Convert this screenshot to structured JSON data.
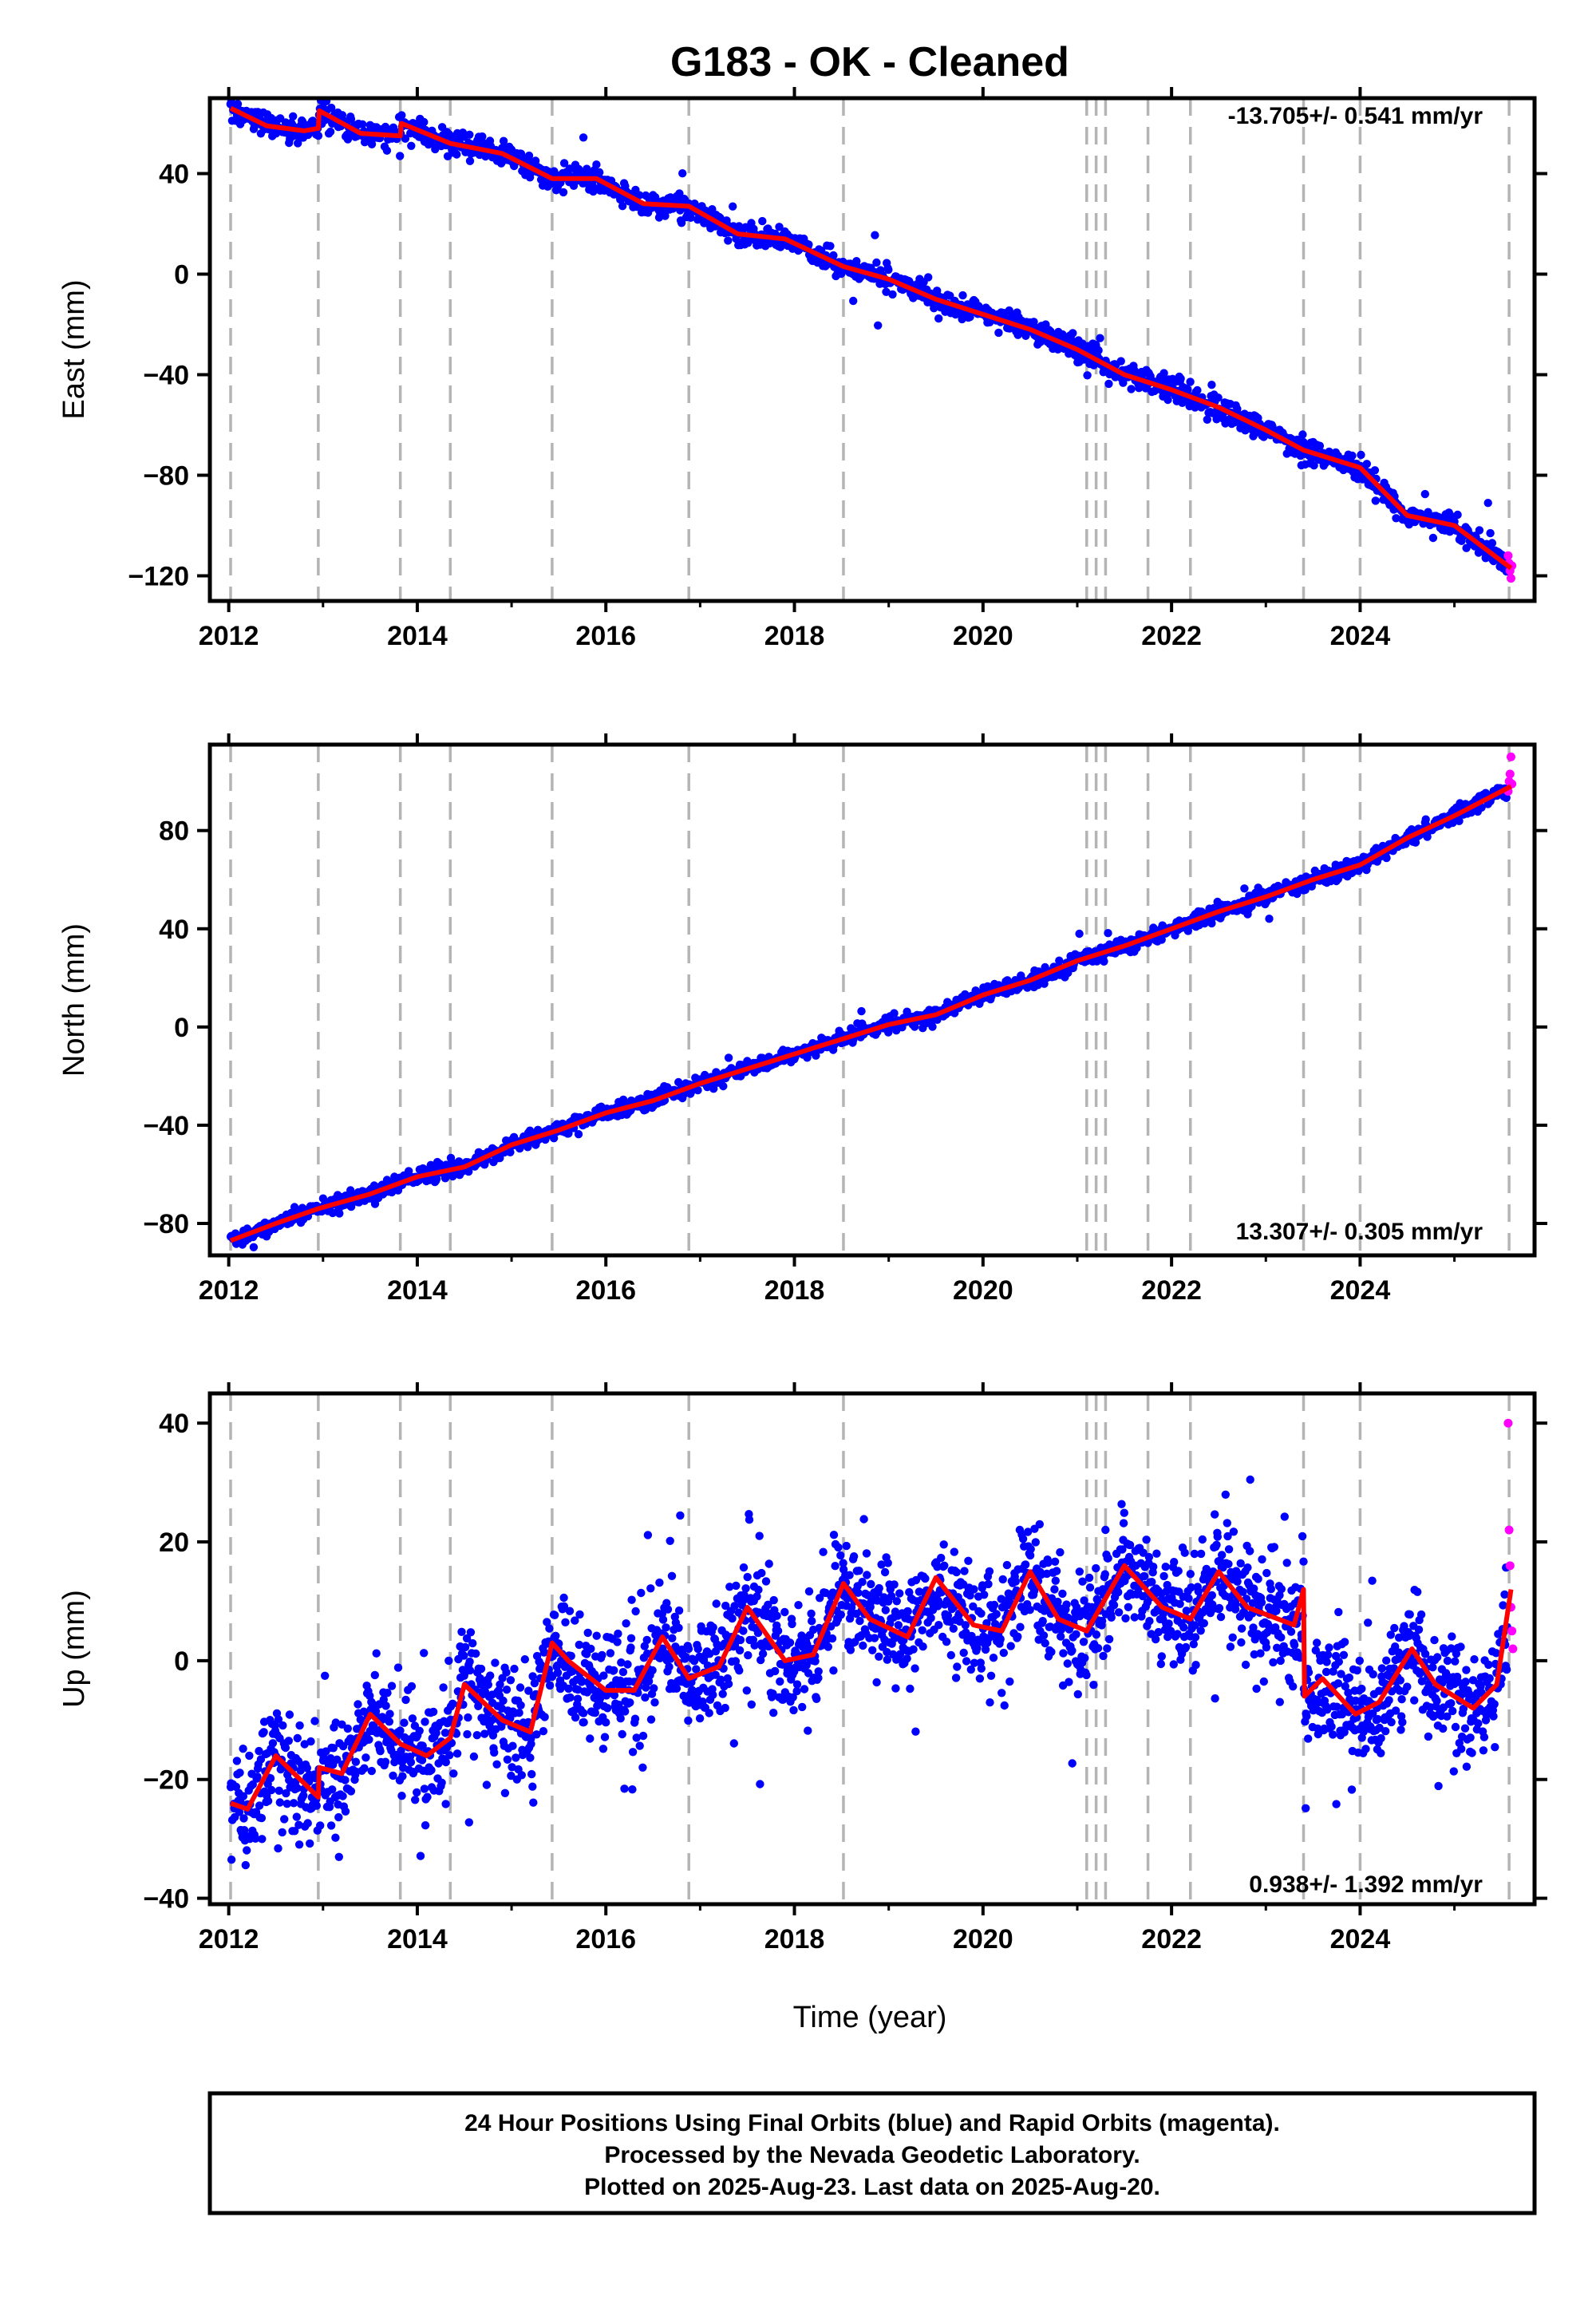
{
  "title": "G183  - OK - Cleaned",
  "xlabel": "Time (year)",
  "caption": {
    "lines": [
      "24 Hour Positions Using Final Orbits (blue) and Rapid Orbits (magenta).",
      "Processed by the Nevada Geodetic Laboratory.",
      "Plotted on 2025-Aug-23. Last data on 2025-Aug-20."
    ]
  },
  "colors": {
    "final_orbits": "#0000ff",
    "rapid_orbits": "#ff00ff",
    "model": "#ff0000",
    "event_lines": "#b4b4b4",
    "frame": "#000000"
  },
  "chart_data": [
    {
      "type": "scatter",
      "component": "east",
      "ylabel": "East (mm)",
      "rate_text": "-13.705+/- 0.541 mm/yr",
      "xlim": [
        2011.8,
        2025.85
      ],
      "ylim": [
        -130,
        70
      ],
      "xticks": [
        2012,
        2014,
        2016,
        2018,
        2020,
        2022,
        2024
      ],
      "xtick_labels": [
        "2012",
        "2014",
        "2016",
        "2018",
        "2020",
        "2022",
        "2024"
      ],
      "yticks": [
        40,
        0,
        -40,
        -80,
        -120
      ],
      "ytick_labels": [
        "40",
        "0",
        "−40",
        "−80",
        "−120"
      ],
      "event_lines": [
        2012.02,
        2012.95,
        2013.82,
        2014.35,
        2015.43,
        2016.88,
        2018.52,
        2021.1,
        2021.2,
        2021.3,
        2021.75,
        2022.2,
        2023.4,
        2024.0,
        2025.58
      ],
      "model": {
        "x": [
          2012.02,
          2012.4,
          2012.8,
          2012.95,
          2012.96,
          2013.4,
          2013.82,
          2013.83,
          2014.35,
          2014.9,
          2015.43,
          2015.9,
          2016.4,
          2016.88,
          2017.4,
          2017.9,
          2018.52,
          2019.0,
          2019.5,
          2020.0,
          2020.5,
          2021.0,
          2021.5,
          2022.0,
          2022.5,
          2023.0,
          2023.4,
          2024.0,
          2024.5,
          2025.0,
          2025.6
        ],
        "y": [
          66,
          59,
          57,
          58,
          65,
          56,
          55,
          60,
          52,
          48,
          38,
          38,
          28,
          27,
          16,
          14,
          3,
          -2,
          -10,
          -16,
          -22,
          -30,
          -40,
          -46,
          -53,
          -62,
          -70,
          -77,
          -96,
          -100,
          -117
        ]
      },
      "scatter": {
        "rate": -13.705,
        "seasonal_amplitude": 2.5,
        "noise_sd": 2.4,
        "n_points": 1600,
        "outlier_fraction": 0.02,
        "outlier_sd": 10
      },
      "rapid": {
        "x": [
          2025.57,
          2025.58,
          2025.59,
          2025.6,
          2025.61
        ],
        "y": [
          -112,
          -115,
          -118,
          -121,
          -116
        ]
      }
    },
    {
      "type": "scatter",
      "component": "north",
      "ylabel": "North (mm)",
      "rate_text": "13.307+/- 0.305 mm/yr",
      "xlim": [
        2011.8,
        2025.85
      ],
      "ylim": [
        -93,
        115
      ],
      "xticks": [
        2012,
        2014,
        2016,
        2018,
        2020,
        2022,
        2024
      ],
      "xtick_labels": [
        "2012",
        "2014",
        "2016",
        "2018",
        "2020",
        "2022",
        "2024"
      ],
      "yticks": [
        80,
        40,
        0,
        -40,
        -80
      ],
      "ytick_labels": [
        "80",
        "40",
        "0",
        "−40",
        "−80"
      ],
      "event_lines": [
        2012.02,
        2012.95,
        2013.82,
        2014.35,
        2015.43,
        2016.88,
        2018.52,
        2021.1,
        2021.2,
        2021.3,
        2021.75,
        2022.2,
        2023.4,
        2024.0,
        2025.58
      ],
      "model": {
        "x": [
          2012.02,
          2012.5,
          2012.95,
          2013.5,
          2014.0,
          2014.5,
          2015.0,
          2015.5,
          2016.0,
          2016.5,
          2017.0,
          2017.5,
          2018.0,
          2018.5,
          2019.0,
          2019.5,
          2020.0,
          2020.5,
          2021.0,
          2021.5,
          2022.0,
          2022.5,
          2023.0,
          2023.5,
          2024.0,
          2024.5,
          2025.0,
          2025.6
        ],
        "y": [
          -87,
          -80,
          -74,
          -68,
          -61,
          -57,
          -48,
          -42,
          -35,
          -30,
          -23,
          -17,
          -11,
          -5,
          1,
          5,
          13,
          19,
          27,
          33,
          40,
          47,
          53,
          60,
          66,
          77,
          86,
          98
        ]
      },
      "scatter": {
        "rate": 13.307,
        "seasonal_amplitude": 2.0,
        "noise_sd": 1.6,
        "n_points": 1600,
        "outlier_fraction": 0.01,
        "outlier_sd": 6
      },
      "rapid": {
        "x": [
          2025.57,
          2025.58,
          2025.59,
          2025.6,
          2025.61
        ],
        "y": [
          96,
          100,
          103,
          110,
          99
        ]
      }
    },
    {
      "type": "scatter",
      "component": "up",
      "ylabel": "Up (mm)",
      "rate_text": "0.938+/- 1.392 mm/yr",
      "xlim": [
        2011.8,
        2025.85
      ],
      "ylim": [
        -41,
        45
      ],
      "xticks": [
        2012,
        2014,
        2016,
        2018,
        2020,
        2022,
        2024
      ],
      "xtick_labels": [
        "2012",
        "2014",
        "2016",
        "2018",
        "2020",
        "2022",
        "2024"
      ],
      "yticks": [
        40,
        20,
        0,
        -20,
        -40
      ],
      "ytick_labels": [
        "40",
        "20",
        "0",
        "−20",
        "−40"
      ],
      "event_lines": [
        2012.02,
        2012.95,
        2013.82,
        2014.35,
        2015.43,
        2016.88,
        2018.52,
        2021.1,
        2021.2,
        2021.3,
        2021.75,
        2022.2,
        2023.4,
        2024.0,
        2025.58
      ],
      "model": {
        "x": [
          2012.02,
          2012.2,
          2012.5,
          2012.95,
          2012.96,
          2013.2,
          2013.5,
          2013.82,
          2014.1,
          2014.35,
          2014.5,
          2014.9,
          2015.2,
          2015.43,
          2015.6,
          2016.0,
          2016.3,
          2016.6,
          2016.88,
          2017.2,
          2017.5,
          2017.9,
          2018.2,
          2018.52,
          2018.8,
          2019.2,
          2019.5,
          2019.9,
          2020.2,
          2020.5,
          2020.8,
          2021.1,
          2021.5,
          2021.9,
          2022.2,
          2022.5,
          2022.8,
          2023.3,
          2023.4,
          2023.41,
          2023.6,
          2023.95,
          2024.2,
          2024.55,
          2024.8,
          2025.2,
          2025.45,
          2025.6
        ],
        "y": [
          -24,
          -25,
          -16,
          -23,
          -18,
          -19,
          -9,
          -14,
          -16,
          -13,
          -4,
          -10,
          -12,
          3,
          0,
          -5,
          -5,
          4,
          -3,
          -1,
          9,
          0,
          1,
          13,
          7,
          4,
          14,
          6,
          5,
          15,
          7,
          5,
          16,
          9,
          7,
          15,
          9,
          6,
          12,
          -6,
          -3,
          -9,
          -7,
          2,
          -4,
          -8,
          -4,
          12
        ]
      },
      "scatter": {
        "rate": 0.938,
        "seasonal_amplitude": 5.0,
        "noise_sd": 4.8,
        "n_points": 2400,
        "outlier_fraction": 0.03,
        "outlier_sd": 14
      },
      "rapid": {
        "x": [
          2025.57,
          2025.58,
          2025.59,
          2025.6,
          2025.61,
          2025.62
        ],
        "y": [
          40,
          22,
          16,
          9,
          5,
          2
        ]
      }
    }
  ]
}
